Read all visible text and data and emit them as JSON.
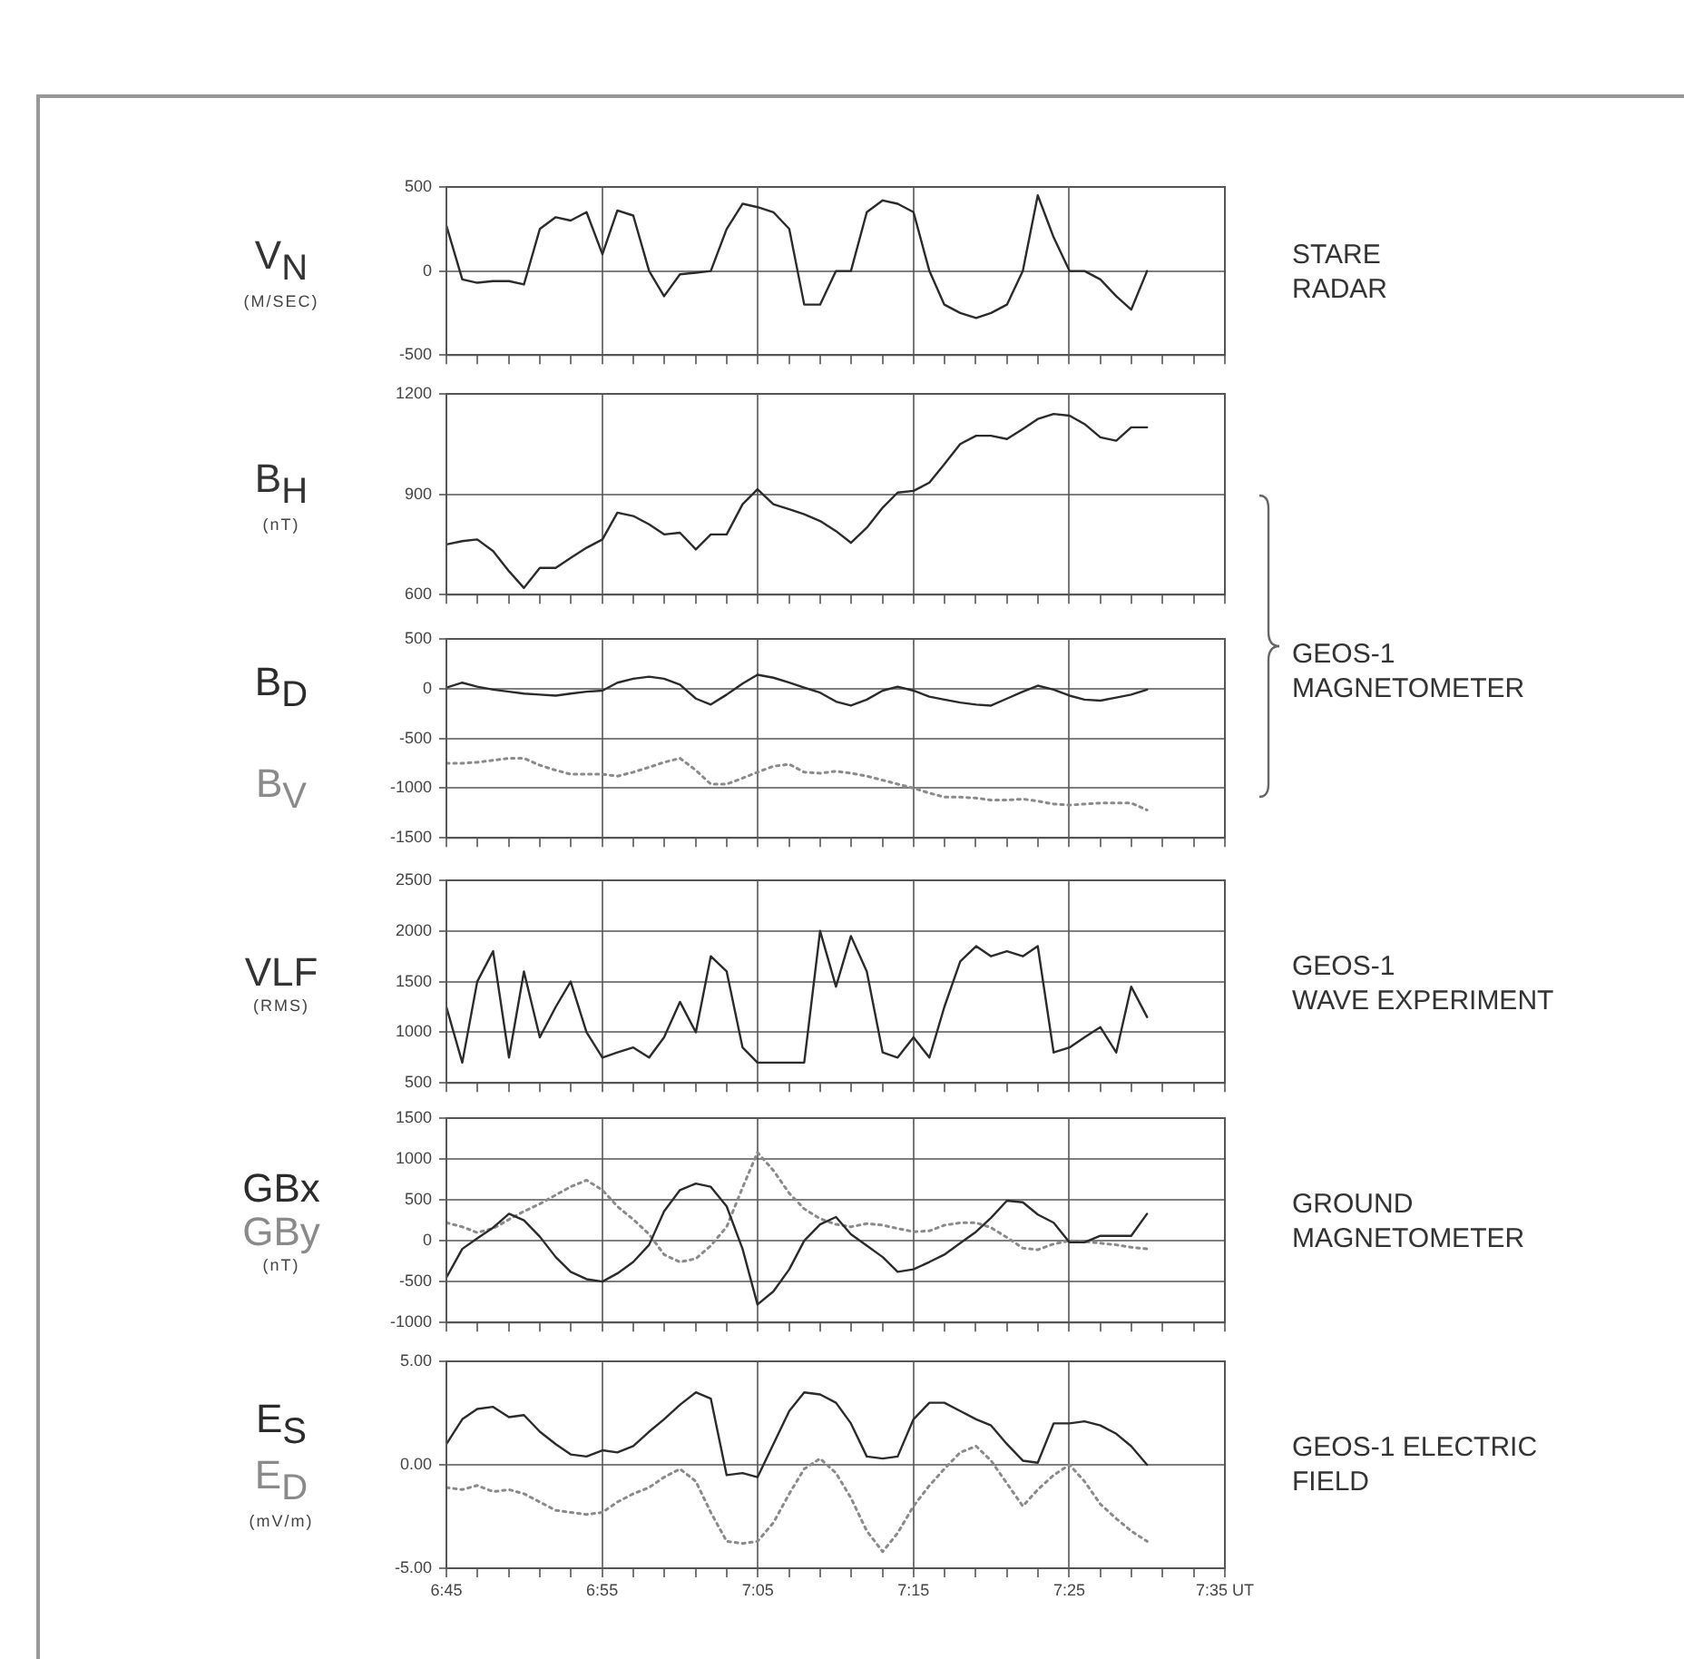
{
  "chart_data": [
    {
      "type": "line",
      "annotations": [
        "STARE\nRADAR"
      ],
      "ylabel": "V$_{N}$\n(M/SEC)",
      "tick_labels": "y",
      "grid": true,
      "xlim": [
        6.75,
        7.5833
      ],
      "ylim": [
        -500,
        500
      ],
      "yticks": [
        -500,
        0,
        500
      ],
      "xticks": [
        6.75,
        {
          "value": 6.7833,
          "label": null
        },
        {
          "value": 6.8167,
          "label": null
        },
        {
          "value": 6.85,
          "label": null
        },
        {
          "value": 6.8833,
          "label": null
        },
        6.9167,
        {
          "value": 6.95,
          "label": null
        },
        {
          "value": 6.9833,
          "label": null
        },
        {
          "value": 7.0167,
          "label": null
        },
        {
          "value": 7.05,
          "label": null
        },
        7.0833,
        {
          "value": 7.1167,
          "label": null
        },
        {
          "value": 7.15,
          "label": null
        },
        {
          "value": 7.1833,
          "label": null
        },
        {
          "value": 7.2167,
          "label": null
        },
        7.25,
        {
          "value": 7.2833,
          "label": null
        },
        {
          "value": 7.3167,
          "label": null
        },
        {
          "value": 7.35,
          "label": null
        },
        {
          "value": 7.3833,
          "label": null
        },
        7.4167,
        {
          "value": 7.45,
          "label": null
        },
        {
          "value": 7.4833,
          "label": null
        },
        {
          "value": 7.5167,
          "label": null
        },
        {
          "value": 7.55,
          "label": null
        },
        7.5833
      ],
      "x": [
        6.75,
        6.767,
        6.783,
        6.8,
        6.817,
        6.833,
        6.85,
        6.867,
        6.883,
        6.9,
        6.917,
        6.933,
        6.95,
        6.967,
        6.983,
        7,
        7.017,
        7.033,
        7.05,
        7.067,
        7.083,
        7.1,
        7.117,
        7.133,
        7.15,
        7.167,
        7.183,
        7.2,
        7.217,
        7.233,
        7.25,
        7.267,
        7.283,
        7.3,
        7.317,
        7.333,
        7.35,
        7.367,
        7.383,
        7.4,
        7.417,
        7.433,
        7.45,
        7.467,
        7.483,
        7.5
      ],
      "series": [
        {
          "color": "#2b2b2b",
          "line_style": "solid",
          "values": [
            270,
            -50,
            -70,
            -60,
            -60,
            -80,
            250,
            320,
            300,
            350,
            100,
            360,
            330,
            0,
            -150,
            -20,
            -10,
            0,
            250,
            400,
            380,
            350,
            250,
            -200,
            -200,
            0,
            0,
            350,
            420,
            400,
            350,
            0,
            -200,
            -250,
            -280,
            -250,
            -200,
            0,
            450,
            200,
            0,
            0,
            -50,
            -150,
            -230,
            0
          ]
        }
      ]
    },
    {
      "type": "line",
      "ylabel": "B$_{H}$\n(nT)",
      "tick_labels": "y",
      "grid": true,
      "xlim": [
        6.75,
        7.5833
      ],
      "ylim": [
        600,
        1200
      ],
      "yticks": [
        600,
        900,
        1200
      ],
      "xticks": [
        6.75,
        {
          "value": 6.7833,
          "label": null
        },
        {
          "value": 6.8167,
          "label": null
        },
        {
          "value": 6.85,
          "label": null
        },
        {
          "value": 6.8833,
          "label": null
        },
        6.9167,
        {
          "value": 6.95,
          "label": null
        },
        {
          "value": 6.9833,
          "label": null
        },
        {
          "value": 7.0167,
          "label": null
        },
        {
          "value": 7.05,
          "label": null
        },
        7.0833,
        {
          "value": 7.1167,
          "label": null
        },
        {
          "value": 7.15,
          "label": null
        },
        {
          "value": 7.1833,
          "label": null
        },
        {
          "value": 7.2167,
          "label": null
        },
        7.25,
        {
          "value": 7.2833,
          "label": null
        },
        {
          "value": 7.3167,
          "label": null
        },
        {
          "value": 7.35,
          "label": null
        },
        {
          "value": 7.3833,
          "label": null
        },
        7.4167,
        {
          "value": 7.45,
          "label": null
        },
        {
          "value": 7.4833,
          "label": null
        },
        {
          "value": 7.5167,
          "label": null
        },
        {
          "value": 7.55,
          "label": null
        },
        7.5833
      ],
      "x": [
        6.75,
        6.767,
        6.783,
        6.8,
        6.817,
        6.833,
        6.85,
        6.867,
        6.883,
        6.9,
        6.917,
        6.933,
        6.95,
        6.967,
        6.983,
        7,
        7.017,
        7.033,
        7.05,
        7.067,
        7.083,
        7.1,
        7.117,
        7.133,
        7.15,
        7.167,
        7.183,
        7.2,
        7.217,
        7.233,
        7.25,
        7.267,
        7.283,
        7.3,
        7.317,
        7.333,
        7.35,
        7.367,
        7.383,
        7.4,
        7.417,
        7.433,
        7.45,
        7.467,
        7.483,
        7.5
      ],
      "series": [
        {
          "color": "#2b2b2b",
          "line_style": "solid",
          "values": [
            750,
            760,
            765,
            730,
            670,
            620,
            680,
            680,
            710,
            740,
            765,
            845,
            835,
            810,
            780,
            785,
            735,
            780,
            780,
            870,
            915,
            870,
            855,
            840,
            820,
            790,
            755,
            800,
            860,
            905,
            910,
            935,
            990,
            1050,
            1075,
            1075,
            1065,
            1095,
            1125,
            1140,
            1135,
            1110,
            1070,
            1060,
            1100,
            1100
          ]
        }
      ]
    },
    {
      "type": "line",
      "annotations": [
        "GEOS-1\nMAGNETOMETER"
      ],
      "tick_labels": "y",
      "grid": true,
      "xlim": [
        6.75,
        7.5833
      ],
      "ylim": [
        -1500,
        500
      ],
      "yticks": [
        -1500,
        -1000,
        -500,
        0,
        500
      ],
      "xticks": [
        6.75,
        {
          "value": 6.7833,
          "label": null
        },
        {
          "value": 6.8167,
          "label": null
        },
        {
          "value": 6.85,
          "label": null
        },
        {
          "value": 6.8833,
          "label": null
        },
        6.9167,
        {
          "value": 6.95,
          "label": null
        },
        {
          "value": 6.9833,
          "label": null
        },
        {
          "value": 7.0167,
          "label": null
        },
        {
          "value": 7.05,
          "label": null
        },
        7.0833,
        {
          "value": 7.1167,
          "label": null
        },
        {
          "value": 7.15,
          "label": null
        },
        {
          "value": 7.1833,
          "label": null
        },
        {
          "value": 7.2167,
          "label": null
        },
        7.25,
        {
          "value": 7.2833,
          "label": null
        },
        {
          "value": 7.3167,
          "label": null
        },
        {
          "value": 7.35,
          "label": null
        },
        {
          "value": 7.3833,
          "label": null
        },
        7.4167,
        {
          "value": 7.45,
          "label": null
        },
        {
          "value": 7.4833,
          "label": null
        },
        {
          "value": 7.5167,
          "label": null
        },
        {
          "value": 7.55,
          "label": null
        },
        7.5833
      ],
      "x": [
        6.75,
        6.767,
        6.783,
        6.8,
        6.817,
        6.833,
        6.85,
        6.867,
        6.883,
        6.9,
        6.917,
        6.933,
        6.95,
        6.967,
        6.983,
        7,
        7.017,
        7.033,
        7.05,
        7.067,
        7.083,
        7.1,
        7.117,
        7.133,
        7.15,
        7.167,
        7.183,
        7.2,
        7.217,
        7.233,
        7.25,
        7.267,
        7.283,
        7.3,
        7.317,
        7.333,
        7.35,
        7.367,
        7.383,
        7.4,
        7.417,
        7.433,
        7.45,
        7.467,
        7.483,
        7.5
      ],
      "series": [
        {
          "name": "B$_{D}$",
          "color": "#2b2b2b",
          "line_style": "solid",
          "values": [
            10,
            60,
            20,
            -10,
            -30,
            -50,
            -60,
            -70,
            -50,
            -30,
            -20,
            60,
            100,
            120,
            100,
            40,
            -100,
            -160,
            -60,
            50,
            140,
            110,
            60,
            10,
            -40,
            -130,
            -170,
            -110,
            -20,
            20,
            -20,
            -80,
            -110,
            -140,
            -160,
            -170,
            -100,
            -30,
            30,
            -10,
            -70,
            -110,
            -120,
            -90,
            -60,
            -10
          ]
        },
        {
          "name": "B$_{V}$",
          "color": "#8a8a8a",
          "line_style": "dotted",
          "values": [
            -750,
            -750,
            -740,
            -720,
            -700,
            -700,
            -770,
            -820,
            -860,
            -860,
            -860,
            -880,
            -840,
            -790,
            -740,
            -700,
            -820,
            -960,
            -960,
            -900,
            -840,
            -780,
            -760,
            -840,
            -850,
            -830,
            -850,
            -880,
            -920,
            -960,
            -1000,
            -1050,
            -1090,
            -1090,
            -1100,
            -1120,
            -1120,
            -1110,
            -1130,
            -1160,
            -1170,
            -1160,
            -1150,
            -1150,
            -1150,
            -1220
          ]
        }
      ]
    },
    {
      "type": "line",
      "annotations": [
        "GEOS-1\nWAVE EXPERIMENT"
      ],
      "ylabel": "VLF\n(RMS)",
      "tick_labels": "y",
      "grid": true,
      "xlim": [
        6.75,
        7.5833
      ],
      "ylim": [
        500,
        2500
      ],
      "yticks": [
        500,
        1000,
        1500,
        2000,
        2500
      ],
      "xticks": [
        6.75,
        {
          "value": 6.7833,
          "label": null
        },
        {
          "value": 6.8167,
          "label": null
        },
        {
          "value": 6.85,
          "label": null
        },
        {
          "value": 6.8833,
          "label": null
        },
        6.9167,
        {
          "value": 6.95,
          "label": null
        },
        {
          "value": 6.9833,
          "label": null
        },
        {
          "value": 7.0167,
          "label": null
        },
        {
          "value": 7.05,
          "label": null
        },
        7.0833,
        {
          "value": 7.1167,
          "label": null
        },
        {
          "value": 7.15,
          "label": null
        },
        {
          "value": 7.1833,
          "label": null
        },
        {
          "value": 7.2167,
          "label": null
        },
        7.25,
        {
          "value": 7.2833,
          "label": null
        },
        {
          "value": 7.3167,
          "label": null
        },
        {
          "value": 7.35,
          "label": null
        },
        {
          "value": 7.3833,
          "label": null
        },
        7.4167,
        {
          "value": 7.45,
          "label": null
        },
        {
          "value": 7.4833,
          "label": null
        },
        {
          "value": 7.5167,
          "label": null
        },
        {
          "value": 7.55,
          "label": null
        },
        7.5833
      ],
      "x": [
        6.75,
        6.767,
        6.783,
        6.8,
        6.817,
        6.833,
        6.85,
        6.867,
        6.883,
        6.9,
        6.917,
        6.933,
        6.95,
        6.967,
        6.983,
        7,
        7.017,
        7.033,
        7.05,
        7.067,
        7.083,
        7.1,
        7.117,
        7.133,
        7.15,
        7.167,
        7.183,
        7.2,
        7.217,
        7.233,
        7.25,
        7.267,
        7.283,
        7.3,
        7.317,
        7.333,
        7.35,
        7.367,
        7.383,
        7.4,
        7.417,
        7.433,
        7.45,
        7.467,
        7.483,
        7.5
      ],
      "series": [
        {
          "color": "#2b2b2b",
          "line_style": "solid",
          "values": [
            1250,
            700,
            1500,
            1800,
            750,
            1600,
            950,
            1250,
            1500,
            1000,
            750,
            800,
            850,
            750,
            950,
            1300,
            1000,
            1750,
            1600,
            850,
            700,
            700,
            700,
            700,
            2000,
            1450,
            1950,
            1600,
            800,
            750,
            950,
            750,
            1250,
            1700,
            1850,
            1750,
            1800,
            1750,
            1850,
            800,
            850,
            950,
            1050,
            800,
            1450,
            1150
          ]
        }
      ]
    },
    {
      "type": "line",
      "annotations": [
        "GROUND\nMAGNETOMETER"
      ],
      "ylabel": "(nT)",
      "tick_labels": "y",
      "grid": true,
      "xlim": [
        6.75,
        7.5833
      ],
      "ylim": [
        -1000,
        1500
      ],
      "yticks": [
        -1000,
        -500,
        0,
        500,
        1000,
        1500
      ],
      "xticks": [
        6.75,
        {
          "value": 6.7833,
          "label": null
        },
        {
          "value": 6.8167,
          "label": null
        },
        {
          "value": 6.85,
          "label": null
        },
        {
          "value": 6.8833,
          "label": null
        },
        6.9167,
        {
          "value": 6.95,
          "label": null
        },
        {
          "value": 6.9833,
          "label": null
        },
        {
          "value": 7.0167,
          "label": null
        },
        {
          "value": 7.05,
          "label": null
        },
        7.0833,
        {
          "value": 7.1167,
          "label": null
        },
        {
          "value": 7.15,
          "label": null
        },
        {
          "value": 7.1833,
          "label": null
        },
        {
          "value": 7.2167,
          "label": null
        },
        7.25,
        {
          "value": 7.2833,
          "label": null
        },
        {
          "value": 7.3167,
          "label": null
        },
        {
          "value": 7.35,
          "label": null
        },
        {
          "value": 7.3833,
          "label": null
        },
        7.4167,
        {
          "value": 7.45,
          "label": null
        },
        {
          "value": 7.4833,
          "label": null
        },
        {
          "value": 7.5167,
          "label": null
        },
        {
          "value": 7.55,
          "label": null
        },
        7.5833
      ],
      "x": [
        6.75,
        6.767,
        6.783,
        6.8,
        6.817,
        6.833,
        6.85,
        6.867,
        6.883,
        6.9,
        6.917,
        6.933,
        6.95,
        6.967,
        6.983,
        7,
        7.017,
        7.033,
        7.05,
        7.067,
        7.083,
        7.1,
        7.117,
        7.133,
        7.15,
        7.167,
        7.183,
        7.2,
        7.217,
        7.233,
        7.25,
        7.267,
        7.283,
        7.3,
        7.317,
        7.333,
        7.35,
        7.367,
        7.383,
        7.4,
        7.417,
        7.433,
        7.45,
        7.467,
        7.483,
        7.5
      ],
      "series": [
        {
          "name": "GBx",
          "color": "#2b2b2b",
          "line_style": "solid",
          "values": [
            -450,
            -100,
            30,
            160,
            330,
            250,
            50,
            -200,
            -380,
            -470,
            -500,
            -400,
            -260,
            -50,
            360,
            620,
            700,
            660,
            420,
            -100,
            -780,
            -620,
            -350,
            0,
            200,
            290,
            80,
            -60,
            -200,
            -380,
            -350,
            -260,
            -170,
            -30,
            110,
            280,
            490,
            470,
            320,
            220,
            -20,
            -20,
            60,
            60,
            60,
            330
          ]
        },
        {
          "name": "GBy",
          "color": "#8a8a8a",
          "line_style": "dotted",
          "values": [
            220,
            170,
            100,
            150,
            260,
            360,
            450,
            560,
            660,
            740,
            620,
            420,
            260,
            80,
            -170,
            -260,
            -220,
            -60,
            170,
            650,
            1080,
            860,
            580,
            390,
            270,
            200,
            170,
            210,
            190,
            150,
            110,
            120,
            190,
            220,
            220,
            160,
            40,
            -90,
            -110,
            -40,
            0,
            -10,
            -30,
            -50,
            -80,
            -100
          ]
        }
      ]
    },
    {
      "type": "line",
      "annotations": [
        "GEOS-1 ELECTRIC\nFIELD"
      ],
      "ylabel": "(mV/m)",
      "grid": true,
      "xlim": [
        6.75,
        7.5833
      ],
      "ylim": [
        -5,
        5
      ],
      "yticks": [
        {
          "value": -5,
          "label": "-5.00"
        },
        {
          "value": 0,
          "label": "0.00"
        },
        {
          "value": 5,
          "label": "5.00"
        }
      ],
      "xticks": [
        {
          "value": 6.75,
          "label": "6:45"
        },
        {
          "value": 6.7833,
          "label": null
        },
        {
          "value": 6.8167,
          "label": null
        },
        {
          "value": 6.85,
          "label": null
        },
        {
          "value": 6.8833,
          "label": null
        },
        {
          "value": 6.9167,
          "label": "6:55"
        },
        {
          "value": 6.95,
          "label": null
        },
        {
          "value": 6.9833,
          "label": null
        },
        {
          "value": 7.0167,
          "label": null
        },
        {
          "value": 7.05,
          "label": null
        },
        {
          "value": 7.0833,
          "label": "7:05"
        },
        {
          "value": 7.1167,
          "label": null
        },
        {
          "value": 7.15,
          "label": null
        },
        {
          "value": 7.1833,
          "label": null
        },
        {
          "value": 7.2167,
          "label": null
        },
        {
          "value": 7.25,
          "label": "7:15"
        },
        {
          "value": 7.2833,
          "label": null
        },
        {
          "value": 7.3167,
          "label": null
        },
        {
          "value": 7.35,
          "label": null
        },
        {
          "value": 7.3833,
          "label": null
        },
        {
          "value": 7.4167,
          "label": "7:25"
        },
        {
          "value": 7.45,
          "label": null
        },
        {
          "value": 7.4833,
          "label": null
        },
        {
          "value": 7.5167,
          "label": null
        },
        {
          "value": 7.55,
          "label": null
        },
        {
          "value": 7.5833,
          "label": "7:35 UT"
        }
      ],
      "x": [
        6.75,
        6.767,
        6.783,
        6.8,
        6.817,
        6.833,
        6.85,
        6.867,
        6.883,
        6.9,
        6.917,
        6.933,
        6.95,
        6.967,
        6.983,
        7,
        7.017,
        7.033,
        7.05,
        7.067,
        7.083,
        7.1,
        7.117,
        7.133,
        7.15,
        7.167,
        7.183,
        7.2,
        7.217,
        7.233,
        7.25,
        7.267,
        7.283,
        7.3,
        7.317,
        7.333,
        7.35,
        7.367,
        7.383,
        7.4,
        7.417,
        7.433,
        7.45,
        7.467,
        7.483,
        7.5
      ],
      "series": [
        {
          "name": "E$_{S}$",
          "color": "#2b2b2b",
          "line_style": "solid",
          "values": [
            1.0,
            2.2,
            2.7,
            2.8,
            2.3,
            2.4,
            1.6,
            1.0,
            0.5,
            0.4,
            0.7,
            0.6,
            0.9,
            1.6,
            2.2,
            2.9,
            3.5,
            3.2,
            -0.5,
            -0.4,
            -0.6,
            1.0,
            2.6,
            3.5,
            3.4,
            3.0,
            2.0,
            0.4,
            0.3,
            0.4,
            2.2,
            3.0,
            3.0,
            2.6,
            2.2,
            1.9,
            1.0,
            0.2,
            0.1,
            2.0,
            2.0,
            2.1,
            1.9,
            1.5,
            0.9,
            0
          ]
        },
        {
          "name": "E$_{D}$",
          "color": "#8a8a8a",
          "line_style": "dotted",
          "values": [
            -1.1,
            -1.2,
            -1.0,
            -1.3,
            -1.2,
            -1.4,
            -1.8,
            -2.2,
            -2.3,
            -2.4,
            -2.3,
            -1.8,
            -1.4,
            -1.1,
            -0.6,
            -0.2,
            -0.8,
            -2.3,
            -3.7,
            -3.8,
            -3.7,
            -2.8,
            -1.4,
            -0.2,
            0.3,
            -0.4,
            -1.6,
            -3.2,
            -4.2,
            -3.3,
            -2.0,
            -1.0,
            -0.2,
            0.6,
            0.9,
            0.2,
            -0.9,
            -2.0,
            -1.2,
            -0.5,
            0,
            -0.8,
            -1.9,
            -2.6,
            -3.2,
            -3.7
          ]
        }
      ]
    }
  ]
}
